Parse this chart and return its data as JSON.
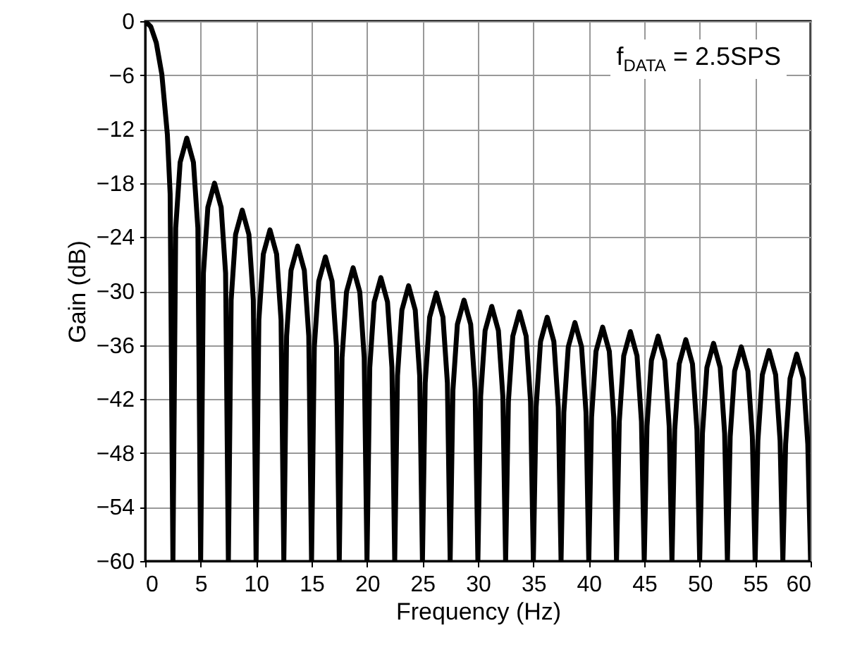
{
  "chart_data": {
    "type": "line",
    "xlabel": "Frequency (Hz)",
    "ylabel": "Gain (dB)",
    "xlim": [
      0,
      60
    ],
    "ylim": [
      -60,
      0
    ],
    "xticks": [
      0,
      5,
      10,
      15,
      20,
      25,
      30,
      35,
      40,
      45,
      50,
      55,
      60
    ],
    "yticks": [
      0,
      -6,
      -12,
      -18,
      -24,
      -30,
      -36,
      -42,
      -48,
      -54,
      -60
    ],
    "grid": true,
    "line_style": "solid",
    "annotations": [
      "f$_{DATA}$ = 2.5SPS"
    ],
    "series": [
      {
        "color": "#000000",
        "x": [
          0,
          0.5,
          1,
          1.5,
          2,
          2.25,
          2.5,
          2.75,
          3.15,
          3.75,
          4.35,
          4.75,
          5,
          5.25,
          5.65,
          6.25,
          6.85,
          7.25,
          7.5,
          7.75,
          8.15,
          8.75,
          9.35,
          9.75,
          10,
          10.25,
          10.65,
          11.25,
          11.85,
          12.25,
          12.5,
          12.75,
          13.15,
          13.75,
          14.35,
          14.75,
          15,
          15.25,
          15.65,
          16.25,
          16.85,
          17.25,
          17.5,
          17.75,
          18.15,
          18.75,
          19.35,
          19.75,
          20,
          20.25,
          20.65,
          21.25,
          21.85,
          22.25,
          22.5,
          22.75,
          23.15,
          23.75,
          24.35,
          24.75,
          25,
          25.25,
          25.65,
          26.25,
          26.85,
          27.25,
          27.5,
          27.75,
          28.15,
          28.75,
          29.35,
          29.75,
          30,
          30.25,
          30.65,
          31.25,
          31.85,
          32.25,
          32.5,
          32.75,
          33.15,
          33.75,
          34.35,
          34.75,
          35,
          35.25,
          35.65,
          36.25,
          36.85,
          37.25,
          37.5,
          37.75,
          38.15,
          38.75,
          39.35,
          39.75,
          40,
          40.25,
          40.65,
          41.25,
          41.85,
          42.25,
          42.5,
          42.75,
          43.15,
          43.75,
          44.35,
          44.75,
          45,
          45.25,
          45.65,
          46.25,
          46.85,
          47.25,
          47.5,
          47.75,
          48.15,
          48.75,
          49.35,
          49.75,
          50,
          50.25,
          50.65,
          51.25,
          51.85,
          52.25,
          52.5,
          52.75,
          53.15,
          53.75,
          54.35,
          54.75,
          55,
          55.25,
          55.65,
          56.25,
          56.85,
          57.25,
          57.5,
          57.75,
          58.15,
          58.75,
          59.35,
          59.75,
          60
        ],
        "values": [
          0,
          -0.6,
          -2.4,
          -5.9,
          -12.6,
          -19.2,
          -60,
          -23,
          -15.7,
          -13,
          -15.7,
          -23,
          -60,
          -28,
          -20.7,
          -18,
          -20.7,
          -28,
          -60,
          -31,
          -23.7,
          -21,
          -23.7,
          -31,
          -60,
          -33.2,
          -25.9,
          -23.2,
          -25.9,
          -33.2,
          -60,
          -35,
          -27.7,
          -25,
          -27.7,
          -35,
          -60,
          -36.2,
          -28.9,
          -26.2,
          -28.9,
          -36.2,
          -60,
          -37.4,
          -30.1,
          -27.4,
          -30.1,
          -37.4,
          -60,
          -38.5,
          -31.2,
          -28.5,
          -31.2,
          -38.5,
          -60,
          -39.4,
          -32.1,
          -29.4,
          -32.1,
          -39.4,
          -60,
          -40.2,
          -32.9,
          -30.2,
          -32.9,
          -40.2,
          -60,
          -41,
          -33.7,
          -31,
          -33.7,
          -41,
          -60,
          -41.7,
          -34.4,
          -31.7,
          -34.4,
          -41.7,
          -60,
          -42.3,
          -35,
          -32.3,
          -35,
          -42.3,
          -60,
          -42.9,
          -35.6,
          -32.9,
          -35.6,
          -42.9,
          -60,
          -43.5,
          -36.2,
          -33.5,
          -36.2,
          -43.5,
          -60,
          -44,
          -36.7,
          -34,
          -36.7,
          -44,
          -60,
          -44.5,
          -37.2,
          -34.5,
          -37.2,
          -44.5,
          -60,
          -45,
          -37.7,
          -35,
          -37.7,
          -45,
          -60,
          -45.4,
          -38.1,
          -35.4,
          -38.1,
          -45.4,
          -60,
          -45.8,
          -38.5,
          -35.8,
          -38.5,
          -45.8,
          -60,
          -46.2,
          -38.9,
          -36.2,
          -38.9,
          -46.2,
          -60,
          -46.6,
          -39.3,
          -36.6,
          -39.3,
          -46.6,
          -60,
          -47,
          -39.7,
          -37,
          -39.7,
          -47,
          -60
        ]
      }
    ]
  }
}
